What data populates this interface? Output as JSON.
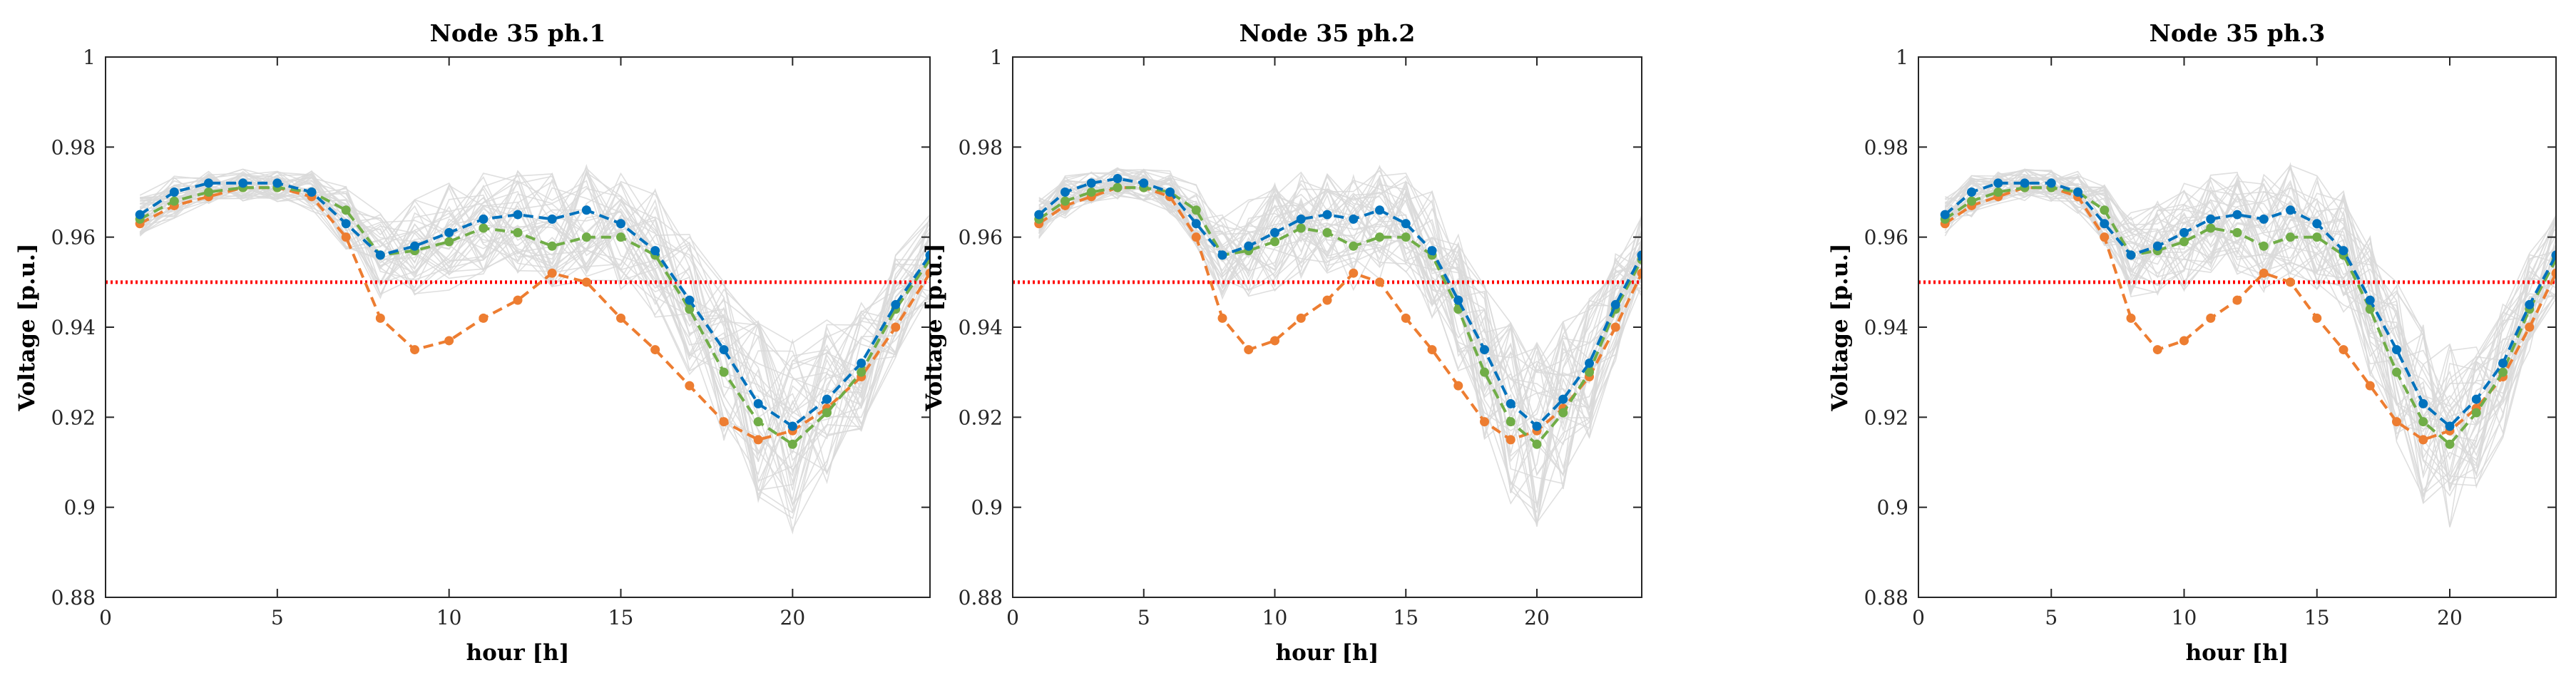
{
  "chart_data": [
    {
      "type": "line",
      "title": "Node 35 ph.1",
      "xlabel": "hour [h]",
      "ylabel": "Voltage [p.u.]",
      "xlim": [
        0,
        24
      ],
      "ylim": [
        0.88,
        1.0
      ],
      "xticks": [
        "0",
        "5",
        "10",
        "15",
        "20"
      ],
      "yticks": [
        "0.88",
        "0.9",
        "0.92",
        "0.94",
        "0.96",
        "0.98",
        "1"
      ],
      "grid": false,
      "threshold": 0.95,
      "colors": {
        "blue": "#0072BD",
        "orange": "#ED7D31",
        "green": "#70AD47",
        "limit": "#FF0000",
        "scenarios": "#D9D9D9"
      },
      "series": [
        {
          "name": "blue",
          "color": "#0072BD",
          "x": [
            1,
            2,
            3,
            4,
            5,
            6,
            7,
            8,
            9,
            10,
            11,
            12,
            13,
            14,
            15,
            16,
            17,
            18,
            19,
            20,
            21,
            22,
            23,
            24
          ],
          "values": [
            0.965,
            0.97,
            0.972,
            0.972,
            0.972,
            0.97,
            0.963,
            0.956,
            0.958,
            0.961,
            0.964,
            0.965,
            0.964,
            0.966,
            0.963,
            0.957,
            0.946,
            0.935,
            0.923,
            0.918,
            0.924,
            0.932,
            0.945,
            0.956
          ]
        },
        {
          "name": "green",
          "color": "#70AD47",
          "x": [
            1,
            2,
            3,
            4,
            5,
            6,
            7,
            8,
            9,
            10,
            11,
            12,
            13,
            14,
            15,
            16,
            17,
            18,
            19,
            20,
            21,
            22,
            23,
            24
          ],
          "values": [
            0.964,
            0.968,
            0.97,
            0.971,
            0.971,
            0.97,
            0.966,
            0.956,
            0.957,
            0.959,
            0.962,
            0.961,
            0.958,
            0.96,
            0.96,
            0.956,
            0.944,
            0.93,
            0.919,
            0.914,
            0.921,
            0.93,
            0.944,
            0.955
          ]
        },
        {
          "name": "orange",
          "color": "#ED7D31",
          "x": [
            1,
            2,
            3,
            4,
            5,
            6,
            7,
            8,
            9,
            10,
            11,
            12,
            13,
            14,
            15,
            16,
            17,
            18,
            19,
            20,
            21,
            22,
            23,
            24
          ],
          "values": [
            0.963,
            0.967,
            0.969,
            0.971,
            0.971,
            0.969,
            0.96,
            0.942,
            0.935,
            0.937,
            0.942,
            0.946,
            0.952,
            0.95,
            0.942,
            0.935,
            0.927,
            0.919,
            0.915,
            0.917,
            0.922,
            0.929,
            0.94,
            0.952
          ]
        }
      ]
    },
    {
      "type": "line",
      "title": "Node 35 ph.2",
      "xlabel": "hour [h]",
      "ylabel": "Voltage [p.u.]",
      "xlim": [
        0,
        24
      ],
      "ylim": [
        0.88,
        1.0
      ],
      "xticks": [
        "0",
        "5",
        "10",
        "15",
        "20"
      ],
      "yticks": [
        "0.88",
        "0.9",
        "0.92",
        "0.94",
        "0.96",
        "0.98",
        "1"
      ],
      "grid": false,
      "threshold": 0.95,
      "colors": {
        "blue": "#0072BD",
        "orange": "#ED7D31",
        "green": "#70AD47",
        "limit": "#FF0000",
        "scenarios": "#D9D9D9"
      },
      "series": [
        {
          "name": "blue",
          "color": "#0072BD",
          "x": [
            1,
            2,
            3,
            4,
            5,
            6,
            7,
            8,
            9,
            10,
            11,
            12,
            13,
            14,
            15,
            16,
            17,
            18,
            19,
            20,
            21,
            22,
            23,
            24
          ],
          "values": [
            0.965,
            0.97,
            0.972,
            0.973,
            0.972,
            0.97,
            0.963,
            0.956,
            0.958,
            0.961,
            0.964,
            0.965,
            0.964,
            0.966,
            0.963,
            0.957,
            0.946,
            0.935,
            0.923,
            0.918,
            0.924,
            0.932,
            0.945,
            0.956
          ]
        },
        {
          "name": "green",
          "color": "#70AD47",
          "x": [
            1,
            2,
            3,
            4,
            5,
            6,
            7,
            8,
            9,
            10,
            11,
            12,
            13,
            14,
            15,
            16,
            17,
            18,
            19,
            20,
            21,
            22,
            23,
            24
          ],
          "values": [
            0.964,
            0.968,
            0.97,
            0.971,
            0.971,
            0.97,
            0.966,
            0.956,
            0.957,
            0.959,
            0.962,
            0.961,
            0.958,
            0.96,
            0.96,
            0.956,
            0.944,
            0.93,
            0.919,
            0.914,
            0.921,
            0.93,
            0.944,
            0.955
          ]
        },
        {
          "name": "orange",
          "color": "#ED7D31",
          "x": [
            1,
            2,
            3,
            4,
            5,
            6,
            7,
            8,
            9,
            10,
            11,
            12,
            13,
            14,
            15,
            16,
            17,
            18,
            19,
            20,
            21,
            22,
            23,
            24
          ],
          "values": [
            0.963,
            0.967,
            0.969,
            0.971,
            0.971,
            0.969,
            0.96,
            0.942,
            0.935,
            0.937,
            0.942,
            0.946,
            0.952,
            0.95,
            0.942,
            0.935,
            0.927,
            0.919,
            0.915,
            0.917,
            0.922,
            0.929,
            0.94,
            0.952
          ]
        }
      ]
    },
    {
      "type": "line",
      "title": "Node 35 ph.3",
      "xlabel": "hour [h]",
      "ylabel": "Voltage [p.u.]",
      "xlim": [
        0,
        24
      ],
      "ylim": [
        0.88,
        1.0
      ],
      "xticks": [
        "0",
        "5",
        "10",
        "15",
        "20"
      ],
      "yticks": [
        "0.88",
        "0.9",
        "0.92",
        "0.94",
        "0.96",
        "0.98",
        "1"
      ],
      "grid": false,
      "threshold": 0.95,
      "colors": {
        "blue": "#0072BD",
        "orange": "#ED7D31",
        "green": "#70AD47",
        "limit": "#FF0000",
        "scenarios": "#D9D9D9"
      },
      "series": [
        {
          "name": "blue",
          "color": "#0072BD",
          "x": [
            1,
            2,
            3,
            4,
            5,
            6,
            7,
            8,
            9,
            10,
            11,
            12,
            13,
            14,
            15,
            16,
            17,
            18,
            19,
            20,
            21,
            22,
            23,
            24
          ],
          "values": [
            0.965,
            0.97,
            0.972,
            0.972,
            0.972,
            0.97,
            0.963,
            0.956,
            0.958,
            0.961,
            0.964,
            0.965,
            0.964,
            0.966,
            0.963,
            0.957,
            0.946,
            0.935,
            0.923,
            0.918,
            0.924,
            0.932,
            0.945,
            0.956
          ]
        },
        {
          "name": "green",
          "color": "#70AD47",
          "x": [
            1,
            2,
            3,
            4,
            5,
            6,
            7,
            8,
            9,
            10,
            11,
            12,
            13,
            14,
            15,
            16,
            17,
            18,
            19,
            20,
            21,
            22,
            23,
            24
          ],
          "values": [
            0.964,
            0.968,
            0.97,
            0.971,
            0.971,
            0.97,
            0.966,
            0.956,
            0.957,
            0.959,
            0.962,
            0.961,
            0.958,
            0.96,
            0.96,
            0.956,
            0.944,
            0.93,
            0.919,
            0.914,
            0.921,
            0.93,
            0.944,
            0.955
          ]
        },
        {
          "name": "orange",
          "color": "#ED7D31",
          "x": [
            1,
            2,
            3,
            4,
            5,
            6,
            7,
            8,
            9,
            10,
            11,
            12,
            13,
            14,
            15,
            16,
            17,
            18,
            19,
            20,
            21,
            22,
            23,
            24
          ],
          "values": [
            0.963,
            0.967,
            0.969,
            0.971,
            0.971,
            0.969,
            0.96,
            0.942,
            0.935,
            0.937,
            0.942,
            0.946,
            0.952,
            0.95,
            0.942,
            0.935,
            0.927,
            0.919,
            0.915,
            0.917,
            0.922,
            0.929,
            0.94,
            0.952
          ]
        }
      ]
    }
  ]
}
